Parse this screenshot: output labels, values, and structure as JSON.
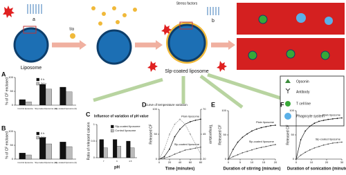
{
  "diagram": {
    "stress": "Stress factors",
    "slp": "Slp",
    "a": "a",
    "b": "b",
    "liposome": "Liposome",
    "coated": "Slp-coated liposome",
    "legend": [
      "Opsonin",
      "Antibody",
      "T cell line",
      "Phagocyte system"
    ]
  },
  "panel_letters": [
    "A",
    "B",
    "C",
    "D",
    "E",
    "F"
  ],
  "chart_data": [
    {
      "type": "bar",
      "y_label": "% of CF enclosed",
      "categories": [
        "Control liposome",
        "Slp-coated liposome (a)",
        "Slp-coated liposome (b)"
      ],
      "series": [
        {
          "name": "0 h",
          "color": "#111111",
          "values": [
            20,
            75,
            65
          ]
        },
        {
          "name": "24 h",
          "color": "#bbbbbb",
          "values": [
            12,
            58,
            48
          ]
        }
      ],
      "ylim": [
        0,
        100
      ],
      "yticks": [
        0,
        50,
        100
      ]
    },
    {
      "type": "bar",
      "y_label": "% of CF enclosed",
      "categories": [
        "Control liposome",
        "Slp-coated liposome (a)",
        "Slp-coated liposome (b)"
      ],
      "series": [
        {
          "name": "0 h",
          "color": "#111111",
          "values": [
            22,
            78,
            62
          ]
        },
        {
          "name": "24 h",
          "color": "#bbbbbb",
          "values": [
            15,
            55,
            45
          ]
        }
      ],
      "ylim": [
        0,
        100
      ],
      "yticks": [
        0,
        50,
        100
      ]
    },
    {
      "type": "bar",
      "title": "Influence of variation of pH value",
      "y_label": "Ratio of released calcein",
      "x_label": "pH",
      "categories": [
        "7",
        "6",
        "4.5"
      ],
      "series": [
        {
          "name": "Slp-coated liposome",
          "color": "#111111",
          "values": [
            0.55,
            0.55,
            0.5
          ]
        },
        {
          "name": "Control liposome",
          "color": "#bbbbbb",
          "values": [
            0.3,
            0.35,
            0.3
          ]
        }
      ],
      "ylim": [
        0,
        1
      ],
      "yticks": [
        0,
        0.5,
        1
      ]
    },
    {
      "type": "line",
      "annotation": "Curve of temperature variation",
      "y_label": "Released CF",
      "y2_label": "Temperature",
      "x_label": "Time (minutes)",
      "x": [
        0,
        10,
        20,
        30,
        40,
        50,
        60,
        70,
        80
      ],
      "series": [
        {
          "name": "Plain liposome",
          "color": "#111111",
          "values": [
            0,
            5,
            20,
            45,
            60,
            70,
            75,
            78,
            80
          ]
        },
        {
          "name": "Slp-coated liposome",
          "color": "#555555",
          "values": [
            0,
            2,
            5,
            10,
            14,
            18,
            20,
            22,
            24
          ]
        },
        {
          "name": "Temperature",
          "color": "#999999",
          "axis": "y2",
          "values": [
            20,
            30,
            45,
            55,
            60,
            55,
            45,
            35,
            25
          ]
        }
      ],
      "xlim": [
        0,
        80
      ],
      "xticks": [
        0,
        20,
        40,
        60,
        80
      ],
      "ylim": [
        0,
        100
      ],
      "yticks": [
        0,
        50,
        100
      ],
      "y2lim": [
        20,
        70
      ],
      "y2ticks": [
        20,
        45,
        70
      ]
    },
    {
      "type": "line",
      "y_label": "Released CF",
      "x_label": "Duration of stirring (minutes)",
      "x": [
        0,
        2,
        4,
        6,
        8,
        10,
        12,
        14,
        16,
        18,
        20
      ],
      "series": [
        {
          "name": "Plain liposome",
          "color": "#111111",
          "values": [
            0,
            20,
            35,
            45,
            52,
            58,
            62,
            65,
            67,
            69,
            70
          ]
        },
        {
          "name": "Slp-coated liposome",
          "color": "#555555",
          "values": [
            0,
            5,
            9,
            13,
            16,
            19,
            22,
            24,
            26,
            28,
            30
          ]
        }
      ],
      "xlim": [
        0,
        20
      ],
      "xticks": [
        0,
        5,
        10,
        15,
        20
      ],
      "ylim": [
        0,
        100
      ],
      "yticks": [
        0,
        50,
        100
      ]
    },
    {
      "type": "line",
      "y_label": "Released CF",
      "x_label": "Duration of sonication (minutes)",
      "x": [
        0,
        3,
        6,
        9,
        12,
        15,
        18,
        21,
        24,
        27,
        30
      ],
      "series": [
        {
          "name": "Plain liposome",
          "color": "#111111",
          "values": [
            0,
            40,
            58,
            68,
            74,
            78,
            80,
            82,
            83,
            84,
            85
          ]
        },
        {
          "name": "Slp-coated liposome",
          "color": "#555555",
          "values": [
            0,
            8,
            14,
            19,
            23,
            26,
            29,
            31,
            33,
            34,
            35
          ]
        }
      ],
      "xlim": [
        0,
        30
      ],
      "xticks": [
        0,
        10,
        20,
        30
      ],
      "ylim": [
        0,
        100
      ],
      "yticks": [
        0,
        50,
        100
      ]
    }
  ]
}
